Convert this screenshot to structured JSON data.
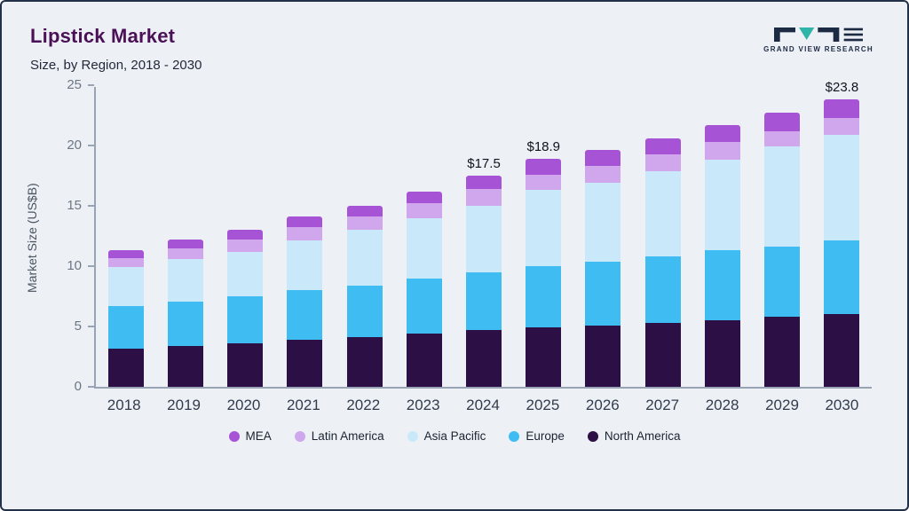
{
  "header": {
    "title": "Lipstick Market",
    "subtitle": "Size, by Region, 2018 - 2030",
    "logo_text": "GRAND VIEW RESEARCH"
  },
  "chart_data": {
    "type": "bar",
    "stacked": true,
    "title": "Lipstick Market Size, by Region, 2018 - 2030",
    "ylabel": "Market Size (US$B)",
    "ylim": [
      0,
      25
    ],
    "yticks": [
      0,
      5,
      10,
      15,
      20,
      25
    ],
    "grid": false,
    "legend_position": "bottom",
    "categories": [
      "2018",
      "2019",
      "2020",
      "2021",
      "2022",
      "2023",
      "2024",
      "2025",
      "2026",
      "2027",
      "2028",
      "2029",
      "2030"
    ],
    "series": [
      {
        "name": "North America",
        "color": "#2c0f44",
        "values": [
          3.2,
          3.4,
          3.6,
          3.9,
          4.1,
          4.4,
          4.7,
          4.9,
          5.1,
          5.3,
          5.5,
          5.8,
          6.0
        ]
      },
      {
        "name": "Europe",
        "color": "#3fbdf2",
        "values": [
          3.5,
          3.7,
          3.9,
          4.1,
          4.3,
          4.6,
          4.8,
          5.1,
          5.3,
          5.5,
          5.8,
          5.8,
          6.1
        ]
      },
      {
        "name": "Asia Pacific",
        "color": "#c9e9fb",
        "values": [
          3.2,
          3.5,
          3.7,
          4.1,
          4.6,
          5.0,
          5.5,
          6.3,
          6.5,
          7.1,
          7.5,
          8.3,
          8.8
        ]
      },
      {
        "name": "Latin America",
        "color": "#d0a6ec",
        "values": [
          0.8,
          0.9,
          1.0,
          1.1,
          1.1,
          1.2,
          1.4,
          1.3,
          1.4,
          1.4,
          1.5,
          1.3,
          1.4
        ]
      },
      {
        "name": "MEA",
        "color": "#a653d6",
        "values": [
          0.6,
          0.7,
          0.8,
          0.9,
          0.9,
          1.0,
          1.1,
          1.3,
          1.3,
          1.3,
          1.4,
          1.5,
          1.5
        ]
      }
    ],
    "totals": [
      11.3,
      12.2,
      13.0,
      14.1,
      15.0,
      16.2,
      17.5,
      18.9,
      19.6,
      20.6,
      21.7,
      22.7,
      23.8
    ],
    "annotations": {
      "2024": "$17.5",
      "2025": "$18.9",
      "2030": "$23.8"
    },
    "legend": [
      {
        "label": "MEA",
        "color": "#a653d6"
      },
      {
        "label": "Latin America",
        "color": "#d0a6ec"
      },
      {
        "label": "Asia Pacific",
        "color": "#c9e9fb"
      },
      {
        "label": "Europe",
        "color": "#3fbdf2"
      },
      {
        "label": "North America",
        "color": "#2c0f44"
      }
    ]
  }
}
